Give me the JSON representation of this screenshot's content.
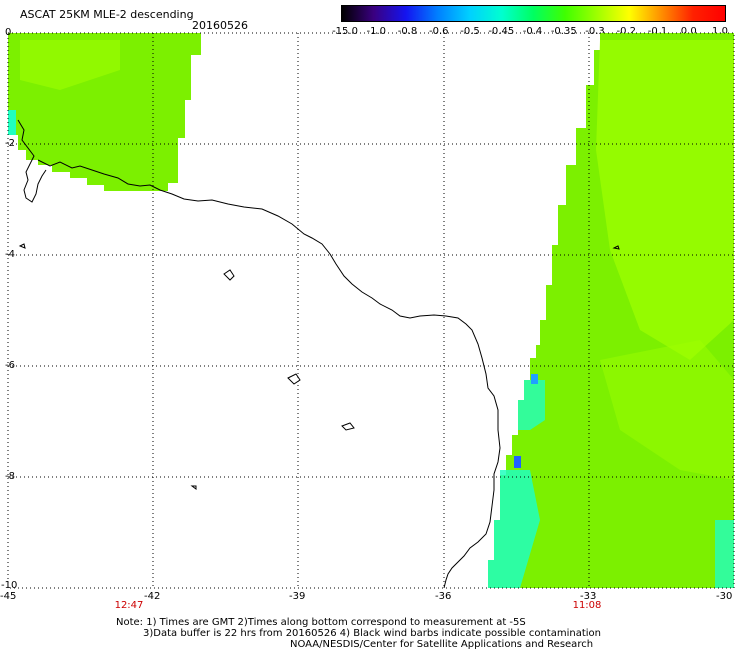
{
  "header": {
    "product": "ASCAT 25KM MLE-2 descending",
    "date": "20160526"
  },
  "colorbar": {
    "labels": [
      "-15.0",
      "-1.0",
      "-0.8",
      "-0.6",
      "-0.5",
      "-0.45",
      "-0.4",
      "-0.35",
      "-0.3",
      "-0.2",
      "-0.1",
      "0.0",
      "1.0"
    ],
    "colors": [
      "#000000",
      "#3a0080",
      "#1414f0",
      "#0080ff",
      "#00d0ff",
      "#00ffd0",
      "#00ff60",
      "#40ff00",
      "#a0ff00",
      "#ffff00",
      "#ff9000",
      "#ff2000",
      "#ff0000"
    ]
  },
  "map": {
    "lat_labels": [
      "0",
      "-2",
      "-4",
      "-6",
      "-8",
      "-10"
    ],
    "lon_labels": [
      "-45",
      "-42",
      "-39",
      "-36",
      "-33",
      "-30"
    ],
    "colors": {
      "swath_main": "#7cf000",
      "swath_light": "#a0ff00",
      "swath_cyan": "#20ffc0",
      "swath_blue": "#2060ff",
      "coast": "#000000",
      "grid": "#000000"
    }
  },
  "times": {
    "left": "12:47",
    "right": "11:08"
  },
  "notes": {
    "line1": "Note: 1) Times are GMT 2)Times along bottom correspond to measurement at -5S",
    "line2": "3)Data buffer is 22 hrs from 20160526 4) Black wind barbs indicate possible contamination",
    "line3": "NOAA/NESDIS/Center for Satellite Applications and Research"
  }
}
